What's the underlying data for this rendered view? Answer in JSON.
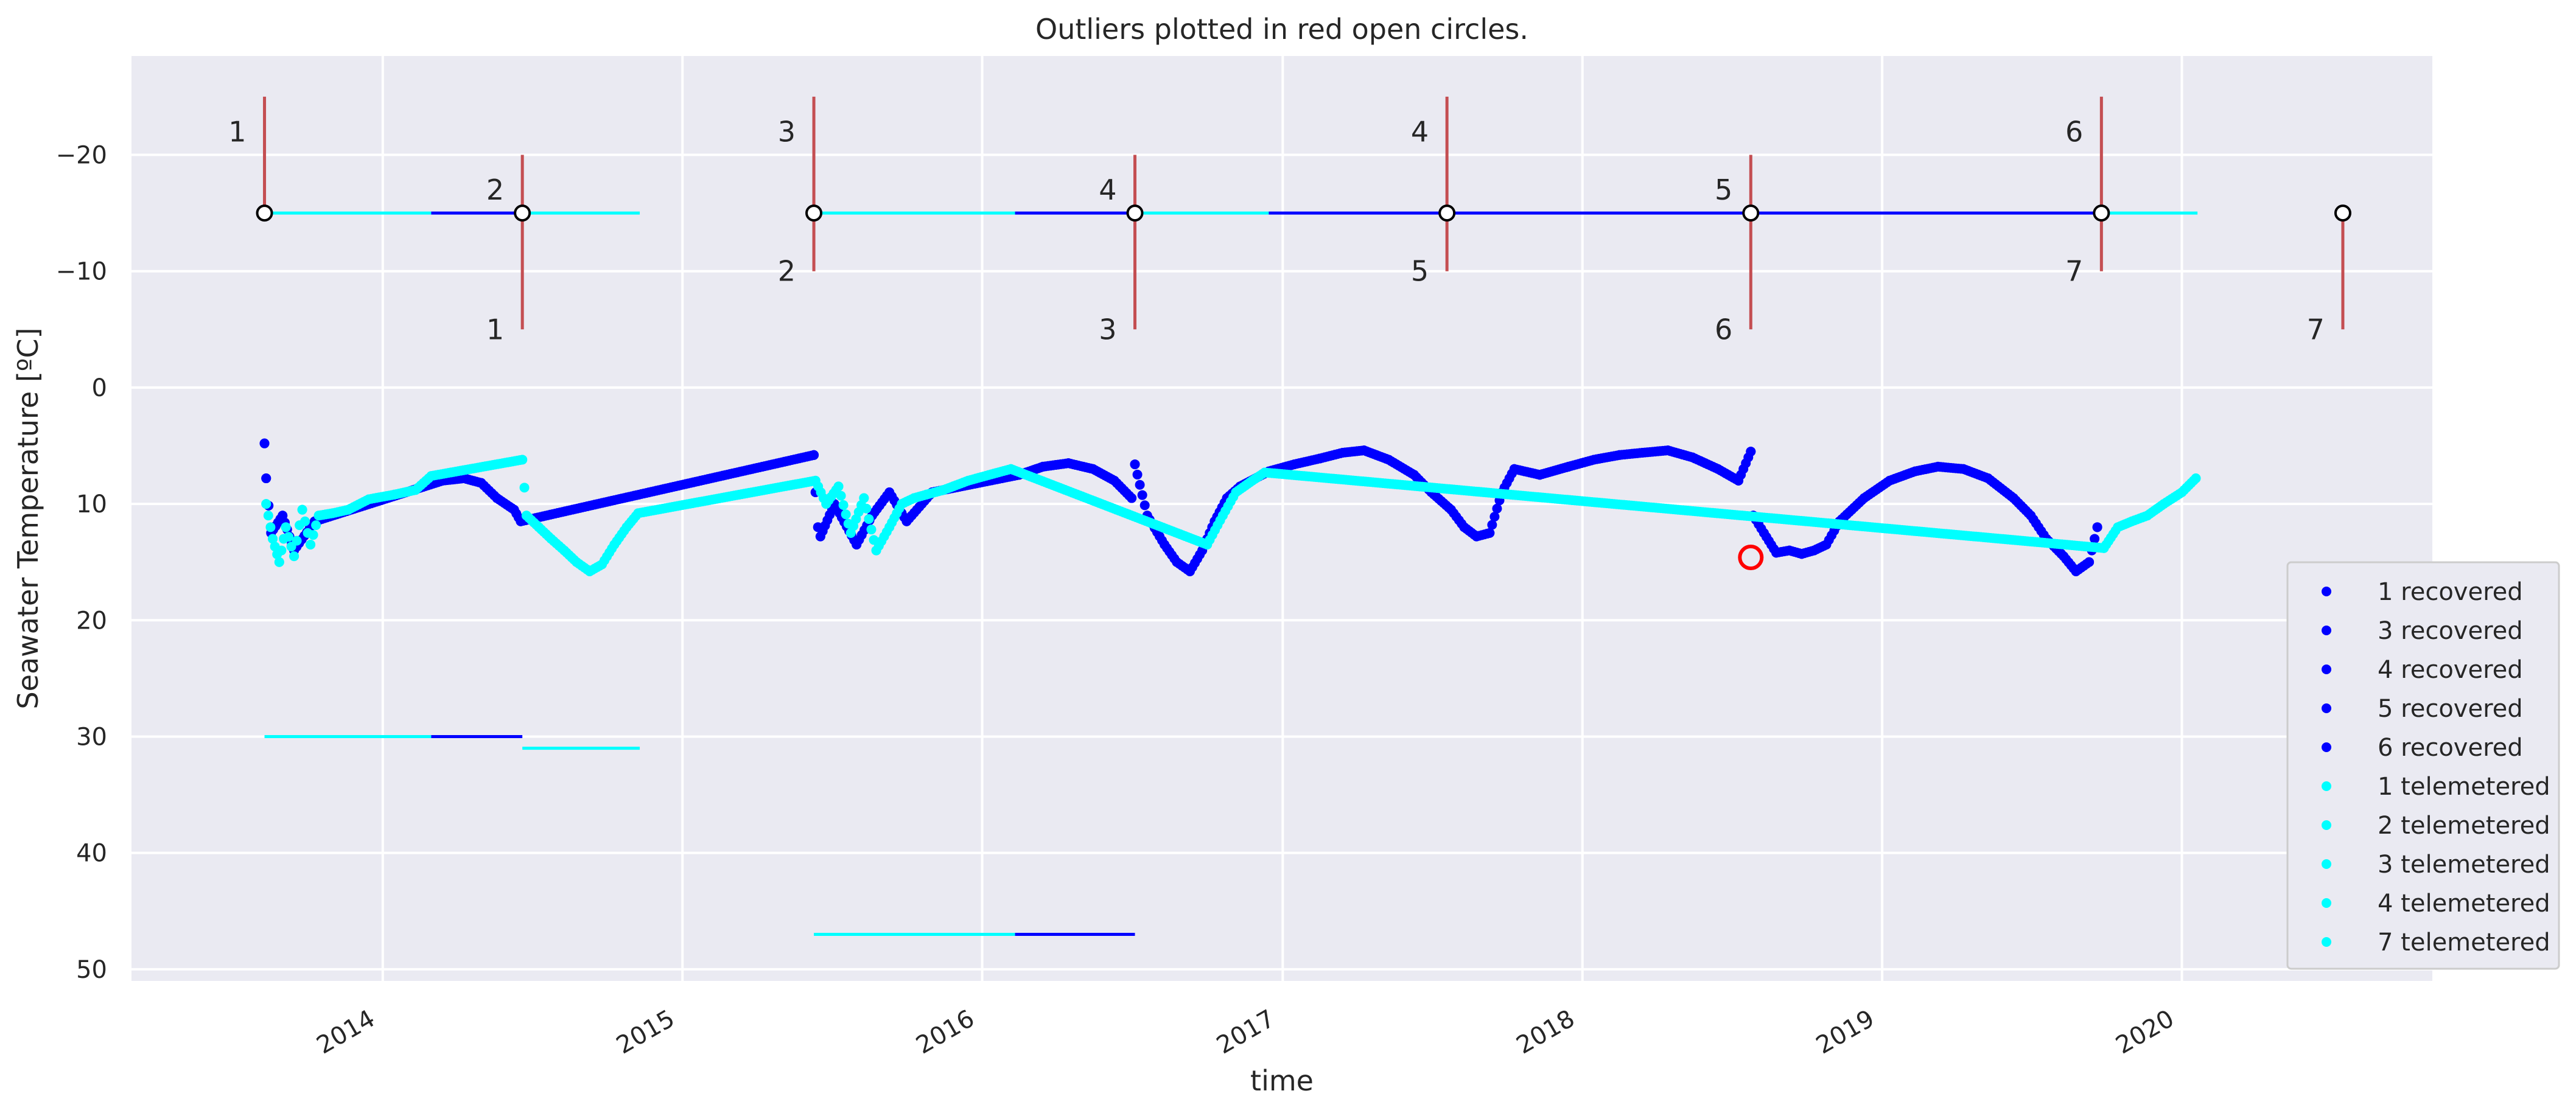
{
  "chart_data": {
    "type": "scatter",
    "title": "Outliers plotted in red open circles.",
    "xlabel": "time",
    "ylabel": "Seawater Temperature [ºC]",
    "y_inverted": true,
    "ylim": [
      51,
      -28.5
    ],
    "xlim": [
      "2013-03-01",
      "2020-11-01"
    ],
    "yticks": [
      -20,
      -10,
      0,
      10,
      20,
      30,
      40,
      50
    ],
    "xticks": [
      "2014",
      "2015",
      "2016",
      "2017",
      "2018",
      "2019",
      "2020"
    ],
    "grid": true,
    "legend_position": "lower-right",
    "colors": {
      "recovered": "#0000ff",
      "telemetered": "#00ffff",
      "outlier": "#ff0000",
      "deploy_line": "#c44e52",
      "plot_bg": "#eaeaf2",
      "grid": "#ffffff"
    },
    "legend": [
      {
        "label": "1 recovered",
        "color": "#0000ff"
      },
      {
        "label": "3 recovered",
        "color": "#0000ff"
      },
      {
        "label": "4 recovered",
        "color": "#0000ff"
      },
      {
        "label": "5 recovered",
        "color": "#0000ff"
      },
      {
        "label": "6 recovered",
        "color": "#0000ff"
      },
      {
        "label": "1 telemetered",
        "color": "#00ffff"
      },
      {
        "label": "2 telemetered",
        "color": "#00ffff"
      },
      {
        "label": "3 telemetered",
        "color": "#00ffff"
      },
      {
        "label": "4 telemetered",
        "color": "#00ffff"
      },
      {
        "label": "7 telemetered",
        "color": "#00ffff"
      }
    ],
    "deployments": [
      {
        "label": "1",
        "date": "2013-08-10",
        "kind": "start",
        "y_top": -25,
        "y_bottom": -15
      },
      {
        "label": "2",
        "date": "2014-06-20",
        "kind": "start",
        "y_top": -20,
        "y_bottom": -15
      },
      {
        "label": "1",
        "date": "2014-06-20",
        "kind": "end",
        "y_top": -15,
        "y_bottom": -5
      },
      {
        "label": "3",
        "date": "2015-06-10",
        "kind": "start",
        "y_top": -25,
        "y_bottom": -15
      },
      {
        "label": "2",
        "date": "2015-06-10",
        "kind": "end",
        "y_top": -15,
        "y_bottom": -10
      },
      {
        "label": "4",
        "date": "2016-07-05",
        "kind": "start",
        "y_top": -20,
        "y_bottom": -15
      },
      {
        "label": "3",
        "date": "2016-07-05",
        "kind": "end",
        "y_top": -15,
        "y_bottom": -5
      },
      {
        "label": "4",
        "date": "2017-07-20",
        "kind": "start",
        "y_top": -25,
        "y_bottom": -15
      },
      {
        "label": "5",
        "date": "2017-07-20",
        "kind": "end",
        "y_top": -15,
        "y_bottom": -10
      },
      {
        "label": "5",
        "date": "2018-07-25",
        "kind": "start",
        "y_top": -20,
        "y_bottom": -15
      },
      {
        "label": "6",
        "date": "2018-07-25",
        "kind": "end",
        "y_top": -15,
        "y_bottom": -5
      },
      {
        "label": "6",
        "date": "2019-09-25",
        "kind": "start",
        "y_top": -25,
        "y_bottom": -15
      },
      {
        "label": "7",
        "date": "2019-09-25",
        "kind": "end",
        "y_top": -15,
        "y_bottom": -10
      },
      {
        "label": "7",
        "date": "2020-07-15",
        "kind": "end",
        "y_top": -15,
        "y_bottom": -5
      }
    ],
    "deploy_markers": [
      {
        "date": "2013-08-10",
        "y": -15
      },
      {
        "date": "2014-06-20",
        "y": -15
      },
      {
        "date": "2015-06-10",
        "y": -15
      },
      {
        "date": "2016-07-05",
        "y": -15
      },
      {
        "date": "2017-07-20",
        "y": -15
      },
      {
        "date": "2018-07-25",
        "y": -15
      },
      {
        "date": "2019-09-25",
        "y": -15
      },
      {
        "date": "2020-07-15",
        "y": -15
      }
    ],
    "segments": [
      {
        "color": "#00ffff",
        "y": -15,
        "x0": "2013-08-10",
        "x1": "2014-03-01"
      },
      {
        "color": "#0000ff",
        "y": -15,
        "x0": "2014-03-01",
        "x1": "2014-06-20"
      },
      {
        "color": "#00ffff",
        "y": -15,
        "x0": "2014-06-20",
        "x1": "2014-11-10"
      },
      {
        "color": "#00ffff",
        "y": -15,
        "x0": "2015-06-10",
        "x1": "2016-02-10"
      },
      {
        "color": "#0000ff",
        "y": -15,
        "x0": "2016-02-10",
        "x1": "2016-07-05"
      },
      {
        "color": "#00ffff",
        "y": -15,
        "x0": "2016-07-05",
        "x1": "2016-12-15"
      },
      {
        "color": "#0000ff",
        "y": -15,
        "x0": "2016-12-15",
        "x1": "2019-09-25"
      },
      {
        "color": "#00ffff",
        "y": -15,
        "x0": "2019-09-25",
        "x1": "2020-01-20"
      },
      {
        "color": "#00ffff",
        "y": 30,
        "x0": "2013-08-10",
        "x1": "2014-03-01"
      },
      {
        "color": "#0000ff",
        "y": 30,
        "x0": "2014-03-01",
        "x1": "2014-06-20"
      },
      {
        "color": "#00ffff",
        "y": 31,
        "x0": "2014-06-20",
        "x1": "2014-11-10"
      },
      {
        "color": "#00ffff",
        "y": 47,
        "x0": "2015-06-10",
        "x1": "2016-02-10"
      },
      {
        "color": "#0000ff",
        "y": 47,
        "x0": "2016-02-10",
        "x1": "2016-07-05"
      }
    ],
    "series": [
      {
        "name": "recovered",
        "color": "#0000ff",
        "points": [
          [
            "2013-08-10",
            4.8
          ],
          [
            "2013-08-12",
            7.8
          ],
          [
            "2013-08-18",
            12.5
          ],
          [
            "2013-09-01",
            11.0
          ],
          [
            "2013-09-15",
            14.0
          ],
          [
            "2013-10-10",
            11.5
          ],
          [
            "2014-03-15",
            8.0
          ],
          [
            "2014-04-10",
            7.8
          ],
          [
            "2014-05-01",
            8.2
          ],
          [
            "2014-05-20",
            9.5
          ],
          [
            "2014-06-10",
            10.5
          ],
          [
            "2014-06-18",
            11.5
          ],
          [
            "2015-06-10",
            5.8
          ],
          [
            "2015-06-12",
            9.0
          ],
          [
            "2015-06-15",
            12.0
          ],
          [
            "2015-06-18",
            12.8
          ],
          [
            "2015-07-05",
            10.0
          ],
          [
            "2015-08-01",
            13.5
          ],
          [
            "2015-08-20",
            11.0
          ],
          [
            "2015-09-10",
            9.0
          ],
          [
            "2015-10-01",
            11.5
          ],
          [
            "2015-11-01",
            9.0
          ],
          [
            "2016-02-15",
            7.5
          ],
          [
            "2016-03-15",
            6.8
          ],
          [
            "2016-04-15",
            6.5
          ],
          [
            "2016-05-15",
            7.0
          ],
          [
            "2016-06-10",
            8.0
          ],
          [
            "2016-07-01",
            9.5
          ],
          [
            "2016-07-05",
            6.6
          ],
          [
            "2016-07-20",
            11.0
          ],
          [
            "2016-08-10",
            13.5
          ],
          [
            "2016-08-25",
            15.0
          ],
          [
            "2016-09-10",
            15.8
          ],
          [
            "2016-09-25",
            14.0
          ],
          [
            "2016-10-10",
            11.5
          ],
          [
            "2016-10-25",
            9.5
          ],
          [
            "2016-11-10",
            8.5
          ],
          [
            "2016-12-15",
            7.2
          ],
          [
            "2017-01-15",
            6.6
          ],
          [
            "2017-02-15",
            6.1
          ],
          [
            "2017-03-15",
            5.6
          ],
          [
            "2017-04-10",
            5.4
          ],
          [
            "2017-05-10",
            6.2
          ],
          [
            "2017-06-10",
            7.5
          ],
          [
            "2017-07-01",
            9.0
          ],
          [
            "2017-07-25",
            10.5
          ],
          [
            "2017-08-10",
            12.0
          ],
          [
            "2017-08-25",
            12.8
          ],
          [
            "2017-09-10",
            12.5
          ],
          [
            "2017-09-25",
            9.0
          ],
          [
            "2017-10-10",
            7.0
          ],
          [
            "2017-11-10",
            7.5
          ],
          [
            "2017-12-15",
            6.8
          ],
          [
            "2018-01-15",
            6.2
          ],
          [
            "2018-02-15",
            5.8
          ],
          [
            "2018-03-15",
            5.6
          ],
          [
            "2018-04-15",
            5.4
          ],
          [
            "2018-05-15",
            6.0
          ],
          [
            "2018-06-15",
            7.0
          ],
          [
            "2018-07-10",
            8.0
          ],
          [
            "2018-07-25",
            5.5
          ],
          [
            "2018-07-28",
            11.0
          ],
          [
            "2018-08-10",
            12.5
          ],
          [
            "2018-08-25",
            14.2
          ],
          [
            "2018-09-10",
            14.0
          ],
          [
            "2018-09-25",
            14.3
          ],
          [
            "2018-10-10",
            14.0
          ],
          [
            "2018-10-25",
            13.5
          ],
          [
            "2018-11-10",
            11.5
          ],
          [
            "2018-12-10",
            9.5
          ],
          [
            "2019-01-10",
            8.0
          ],
          [
            "2019-02-10",
            7.2
          ],
          [
            "2019-03-10",
            6.8
          ],
          [
            "2019-04-10",
            7.0
          ],
          [
            "2019-05-10",
            7.8
          ],
          [
            "2019-06-10",
            9.5
          ],
          [
            "2019-07-01",
            11.0
          ],
          [
            "2019-07-20",
            13.0
          ],
          [
            "2019-08-10",
            14.5
          ],
          [
            "2019-08-25",
            15.8
          ],
          [
            "2019-09-10",
            15.0
          ],
          [
            "2019-09-20",
            12.0
          ]
        ]
      },
      {
        "name": "telemetered",
        "color": "#00ffff",
        "points": [
          [
            "2013-08-12",
            10.0
          ],
          [
            "2013-08-20",
            13.0
          ],
          [
            "2013-08-28",
            15.0
          ],
          [
            "2013-09-05",
            12.0
          ],
          [
            "2013-09-15",
            14.5
          ],
          [
            "2013-09-25",
            10.5
          ],
          [
            "2013-10-05",
            13.5
          ],
          [
            "2013-10-15",
            11.0
          ],
          [
            "2013-11-01",
            10.8
          ],
          [
            "2013-11-20",
            10.5
          ],
          [
            "2013-12-15",
            9.6
          ],
          [
            "2014-01-15",
            9.2
          ],
          [
            "2014-02-10",
            8.8
          ],
          [
            "2014-03-01",
            7.6
          ],
          [
            "2014-06-20",
            6.2
          ],
          [
            "2014-06-25",
            11.0
          ],
          [
            "2014-07-10",
            12.0
          ],
          [
            "2014-07-25",
            13.0
          ],
          [
            "2014-08-10",
            14.0
          ],
          [
            "2014-08-25",
            15.0
          ],
          [
            "2014-09-10",
            15.8
          ],
          [
            "2014-09-25",
            15.2
          ],
          [
            "2014-10-10",
            13.5
          ],
          [
            "2014-10-25",
            12.0
          ],
          [
            "2014-11-08",
            10.8
          ],
          [
            "2015-06-12",
            8.0
          ],
          [
            "2015-06-25",
            10.0
          ],
          [
            "2015-07-10",
            8.5
          ],
          [
            "2015-07-25",
            12.5
          ],
          [
            "2015-08-10",
            9.5
          ],
          [
            "2015-08-25",
            14.0
          ],
          [
            "2015-09-10",
            12.0
          ],
          [
            "2015-09-25",
            10.0
          ],
          [
            "2015-10-10",
            9.5
          ],
          [
            "2015-10-25",
            9.2
          ],
          [
            "2015-11-15",
            8.8
          ],
          [
            "2015-12-15",
            8.0
          ],
          [
            "2016-01-15",
            7.4
          ],
          [
            "2016-02-05",
            7.0
          ],
          [
            "2016-10-01",
            13.5
          ],
          [
            "2016-10-20",
            11.0
          ],
          [
            "2016-11-05",
            9.0
          ],
          [
            "2016-11-25",
            8.0
          ],
          [
            "2016-12-10",
            7.3
          ],
          [
            "2019-09-28",
            13.8
          ],
          [
            "2019-10-15",
            12.0
          ],
          [
            "2019-11-01",
            11.5
          ],
          [
            "2019-11-20",
            11.0
          ],
          [
            "2019-12-10",
            10.0
          ],
          [
            "2020-01-01",
            9.0
          ],
          [
            "2020-01-18",
            7.8
          ]
        ]
      }
    ],
    "outliers": [
      {
        "date": "2018-07-25",
        "y": 14.6
      }
    ]
  }
}
